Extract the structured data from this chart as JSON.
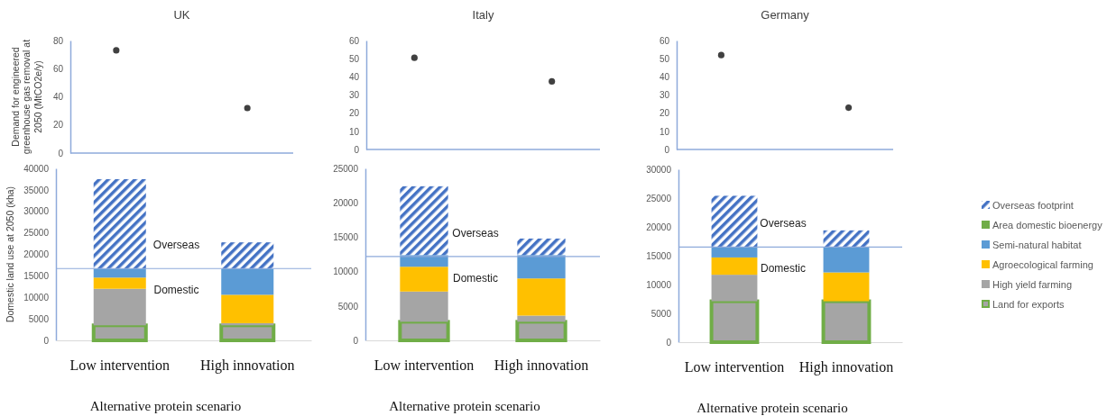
{
  "chart_data": [
    {
      "type": "scatter",
      "title": "UK",
      "ylabel": "Demand for engineered greenhouse gas removal at 2050 (MtCO2e/y)",
      "categories": [
        null,
        null
      ],
      "values": [
        73,
        32
      ],
      "color": "#404040",
      "marker": "circle",
      "ylim": [
        0,
        80
      ],
      "yticks": [
        0,
        20,
        40,
        60,
        80
      ],
      "tick_labels": "y"
    },
    {
      "type": "scatter",
      "title": "Italy",
      "categories": [
        null,
        null
      ],
      "values": [
        50.5,
        37.5
      ],
      "color": "#404040",
      "marker": "circle",
      "ylim": [
        0,
        60
      ],
      "yticks": [
        0,
        10,
        20,
        30,
        40,
        50,
        60
      ],
      "tick_labels": "y"
    },
    {
      "type": "scatter",
      "title": "Germany",
      "categories": [
        null,
        null
      ],
      "values": [
        52,
        23
      ],
      "color": "#404040",
      "marker": "circle",
      "ylim": [
        0,
        60
      ],
      "yticks": [
        0,
        10,
        20,
        30,
        40,
        50,
        60
      ],
      "tick_labels": "y"
    },
    {
      "type": "bar",
      "stacked": true,
      "ylabel": "Domestic land use at 2050 (kha)",
      "xlabel": "Alternative protein scenario",
      "categories": [
        "Low intervention",
        "High innovation"
      ],
      "series": [
        {
          "color": "#70ad47",
          "values": [
            3500,
            3500
          ]
        },
        {
          "color": "#a5a5a5",
          "values": [
            8500,
            500
          ]
        },
        {
          "color": "#ffc000",
          "values": [
            2600,
            6600
          ]
        },
        {
          "color": "#5b9bd5",
          "values": [
            2100,
            6100
          ]
        },
        {
          "color": "#70ad47",
          "values": [
            0,
            0
          ]
        },
        {
          "color": "#4472c4",
          "values": [
            20800,
            6100
          ]
        }
      ],
      "ylim": [
        0,
        40000
      ],
      "yticks": [
        0,
        5000,
        10000,
        15000,
        20000,
        25000,
        30000,
        35000,
        40000
      ],
      "ref_lines": [
        {
          "axis": "y",
          "value": 16700,
          "color": "#8eaadb"
        }
      ],
      "annotations": [
        "Overseas",
        "Domestic"
      ],
      "legend": false
    },
    {
      "type": "bar",
      "stacked": true,
      "xlabel": "Alternative protein scenario",
      "categories": [
        "Low intervention",
        "High innovation"
      ],
      "series": [
        {
          "color": "#70ad47",
          "values": [
            2700,
            2700
          ]
        },
        {
          "color": "#a5a5a5",
          "values": [
            4400,
            900
          ]
        },
        {
          "color": "#ffc000",
          "values": [
            3600,
            5400
          ]
        },
        {
          "color": "#5b9bd5",
          "values": [
            1700,
            3400
          ]
        },
        {
          "color": "#70ad47",
          "values": [
            0,
            0
          ]
        },
        {
          "color": "#4472c4",
          "values": [
            10000,
            2400
          ]
        }
      ],
      "ylim": [
        0,
        25000
      ],
      "yticks": [
        0,
        5000,
        10000,
        15000,
        20000,
        25000
      ],
      "ref_lines": [
        {
          "axis": "y",
          "value": 12200,
          "color": "#8eaadb"
        }
      ],
      "annotations": [
        "Overseas",
        "Domestic"
      ],
      "legend": false
    },
    {
      "type": "bar",
      "stacked": true,
      "xlabel": "Alternative protein scenario",
      "categories": [
        "Low intervention",
        "High innovation"
      ],
      "series": [
        {
          "name": "Land for exports",
          "color": "#70ad47",
          "values": [
            7100,
            7100
          ]
        },
        {
          "name": "High yield farming",
          "color": "#a5a5a5",
          "values": [
            4600,
            0
          ]
        },
        {
          "name": "Agroecological farming",
          "color": "#ffc000",
          "values": [
            3000,
            5000
          ]
        },
        {
          "name": "Semi-natural habitat",
          "color": "#5b9bd5",
          "values": [
            1800,
            4400
          ]
        },
        {
          "name": "Area domestic bioenergy",
          "color": "#70ad47",
          "values": [
            0,
            0
          ]
        },
        {
          "name": "Overseas footprint",
          "color": "#4472c4",
          "values": [
            8900,
            2900
          ]
        }
      ],
      "ylim": [
        0,
        30000
      ],
      "yticks": [
        0,
        5000,
        10000,
        15000,
        20000,
        25000,
        30000
      ],
      "ref_lines": [
        {
          "axis": "y",
          "value": 16500,
          "color": "#8eaadb"
        }
      ],
      "annotations": [
        "Overseas",
        "Domestic"
      ],
      "legend": "right"
    }
  ]
}
